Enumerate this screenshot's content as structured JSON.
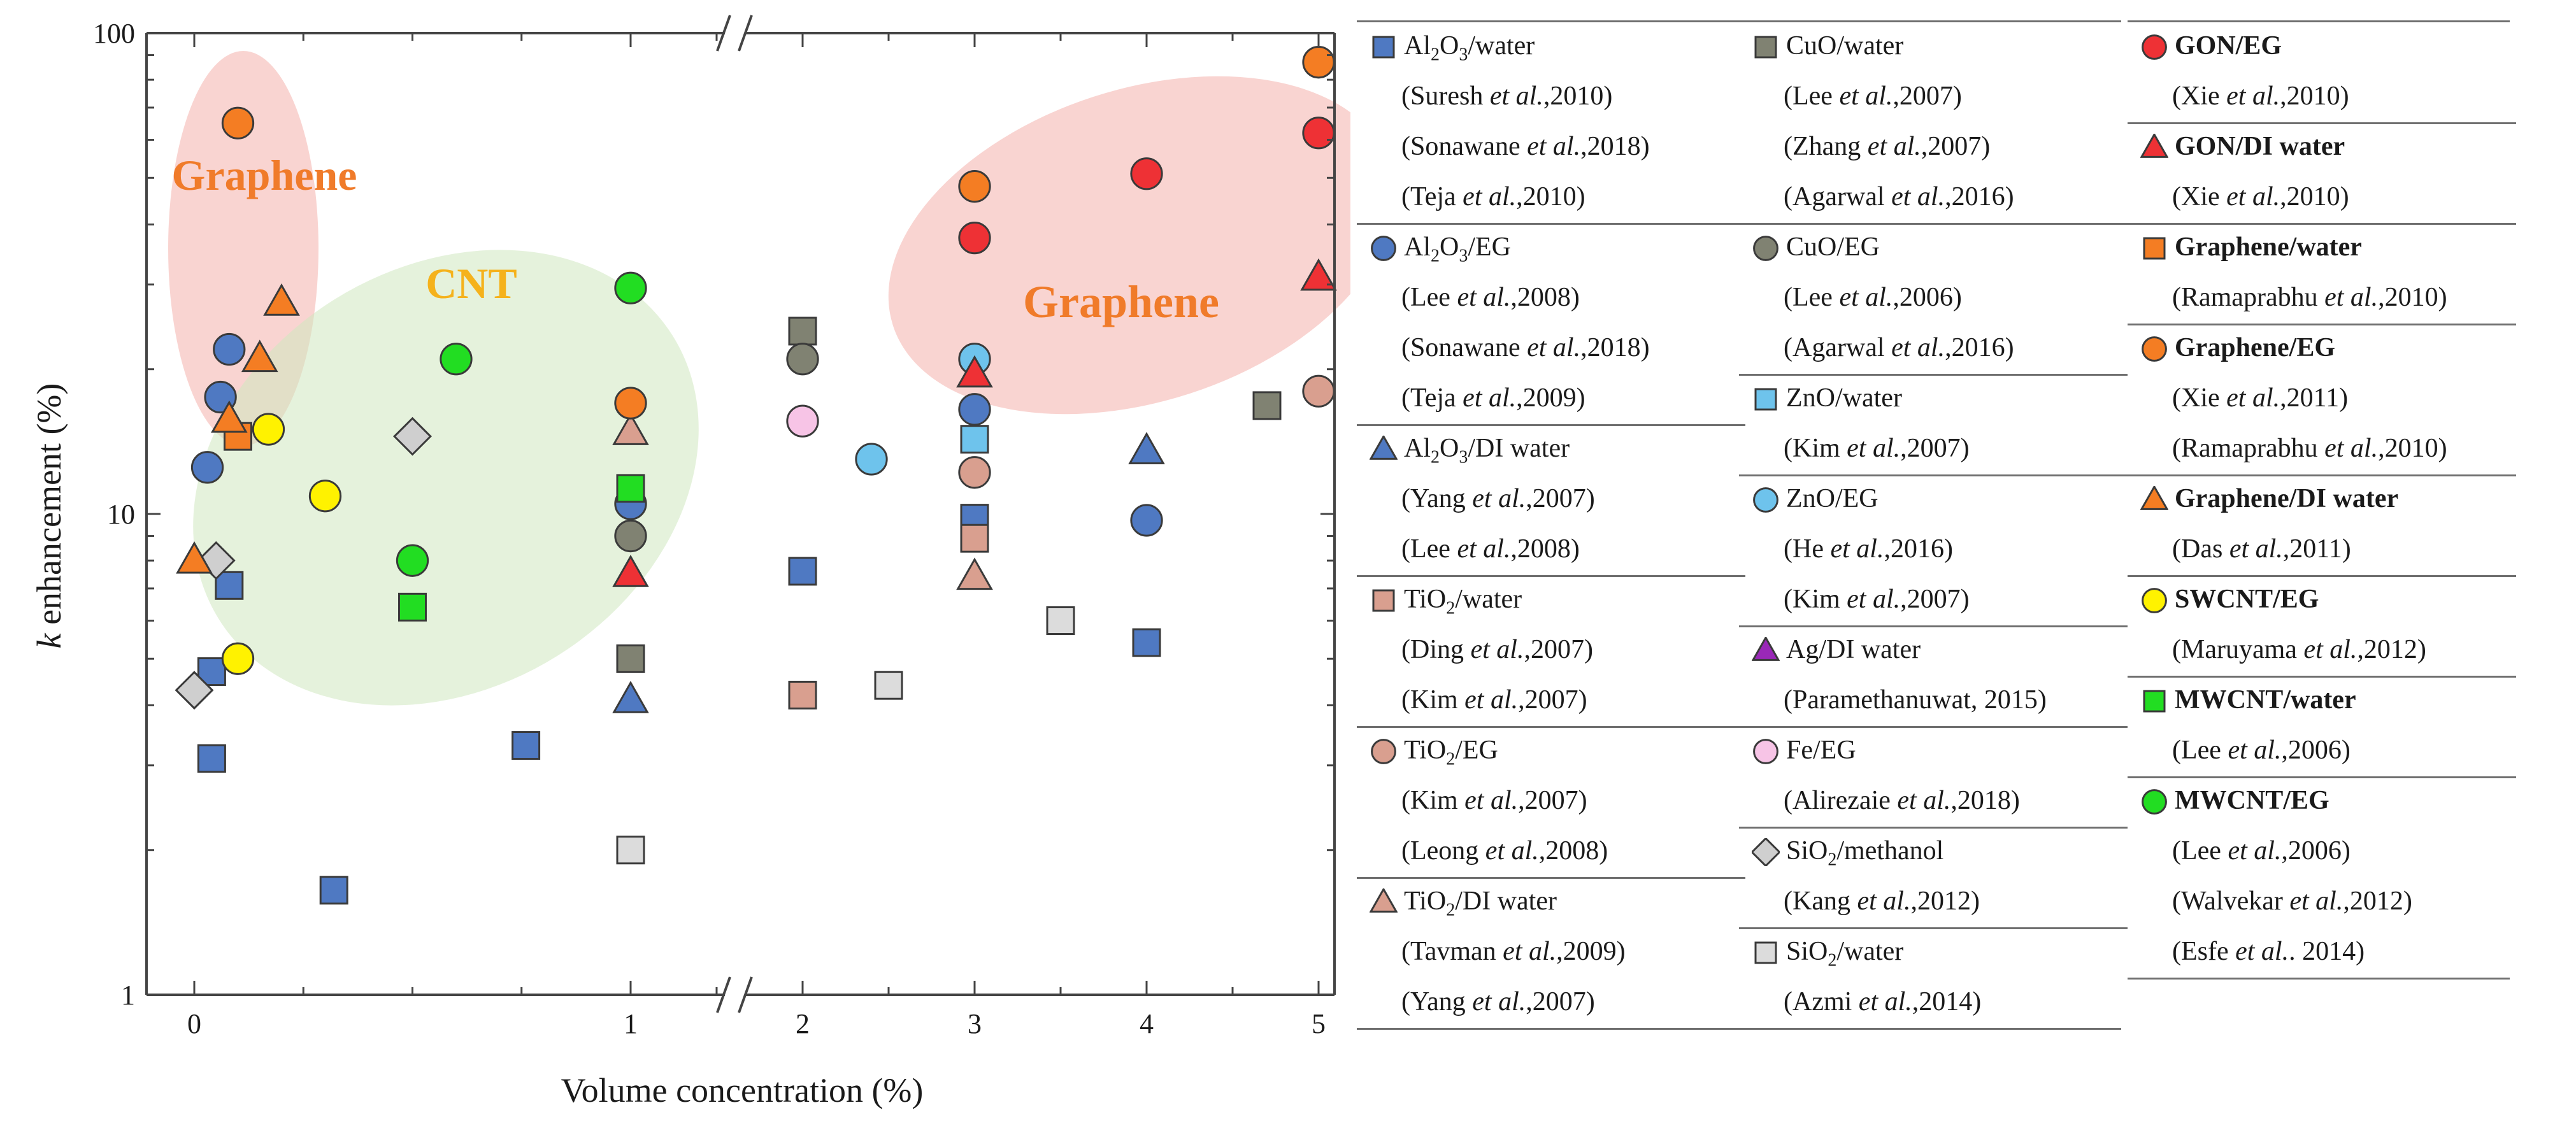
{
  "chart_data": {
    "type": "scatter",
    "y_scale": "log",
    "ylim": [
      1,
      100
    ],
    "xlabel": "Volume concentration (%)",
    "ylabel": "k enhancement (%)",
    "ylabel_parts": {
      "italic": "k",
      "rest": " enhancement (%)"
    },
    "x_axis_break": "//",
    "x_ticks": [
      "0",
      "1",
      "2",
      "3",
      "4",
      "5"
    ],
    "y_ticks": [
      "1",
      "10",
      "100"
    ],
    "regions": [
      {
        "label": "Graphene",
        "color": "#f3a9a4",
        "text_color": "#f07b2a"
      },
      {
        "label": "CNT",
        "color": "#cfe7c0",
        "text_color": "#f5b21c"
      },
      {
        "label": "Graphene",
        "color": "#f3a9a4",
        "text_color": "#f07b2a"
      }
    ],
    "series": [
      {
        "name": "Al2O3/water",
        "marker": "square",
        "color": "#4f79c2",
        "points": [
          [
            0.04,
            4.7
          ],
          [
            0.04,
            3.1
          ],
          [
            0.08,
            7.1
          ],
          [
            0.32,
            1.65
          ],
          [
            0.76,
            3.3
          ],
          [
            2,
            7.6
          ],
          [
            3,
            9.8
          ],
          [
            4,
            5.4
          ]
        ]
      },
      {
        "name": "Al2O3/EG",
        "marker": "circle",
        "color": "#4f79c2",
        "points": [
          [
            0.03,
            12.5
          ],
          [
            0.06,
            17.5
          ],
          [
            0.08,
            22
          ],
          [
            1,
            10.5
          ],
          [
            3,
            16.5
          ],
          [
            4,
            9.7
          ]
        ]
      },
      {
        "name": "Al2O3/DI water",
        "marker": "triangle",
        "color": "#4f79c2",
        "points": [
          [
            1,
            4.1
          ],
          [
            4,
            13.5
          ]
        ]
      },
      {
        "name": "TiO2/water",
        "marker": "square",
        "color": "#d99f8f",
        "points": [
          [
            2,
            4.2
          ],
          [
            3,
            8.9
          ]
        ]
      },
      {
        "name": "TiO2/EG",
        "marker": "circle",
        "color": "#d99f8f",
        "points": [
          [
            3,
            12.2
          ],
          [
            5,
            18
          ]
        ]
      },
      {
        "name": "TiO2/DI water",
        "marker": "triangle",
        "color": "#d99f8f",
        "points": [
          [
            1,
            14.8
          ],
          [
            3,
            7.4
          ]
        ]
      },
      {
        "name": "CuO/water",
        "marker": "square",
        "color": "#808272",
        "points": [
          [
            1,
            5
          ],
          [
            2,
            24
          ],
          [
            4.7,
            16.8
          ]
        ]
      },
      {
        "name": "CuO/EG",
        "marker": "circle",
        "color": "#808272",
        "points": [
          [
            1,
            9
          ],
          [
            2,
            21
          ]
        ]
      },
      {
        "name": "ZnO/water",
        "marker": "square",
        "color": "#6ec3ec",
        "points": [
          [
            3,
            14.3
          ]
        ]
      },
      {
        "name": "ZnO/EG",
        "marker": "circle",
        "color": "#6ec3ec",
        "points": [
          [
            2.4,
            13
          ],
          [
            3,
            21
          ]
        ]
      },
      {
        "name": "Ag/DI water",
        "marker": "triangle",
        "color": "#9a28b8",
        "points": []
      },
      {
        "name": "Fe/EG",
        "marker": "circle",
        "color": "#f7c4e6",
        "points": [
          [
            2,
            15.6
          ]
        ]
      },
      {
        "name": "SiO2/methanol",
        "marker": "diamond",
        "color": "#cfcfcf",
        "points": [
          [
            0,
            4.3
          ],
          [
            0.05,
            8
          ],
          [
            0.5,
            14.5
          ]
        ]
      },
      {
        "name": "SiO2/water",
        "marker": "square",
        "color": "#dcdcdc",
        "points": [
          [
            1,
            2
          ],
          [
            2.5,
            4.4
          ],
          [
            3.5,
            6
          ]
        ]
      },
      {
        "name": "GON/EG",
        "marker": "circle",
        "color": "#ee3135",
        "points": [
          [
            3,
            37.5
          ],
          [
            4,
            51
          ],
          [
            5,
            62
          ]
        ]
      },
      {
        "name": "GON/DI water",
        "marker": "triangle",
        "color": "#ee3135",
        "points": [
          [
            1,
            7.5
          ],
          [
            3,
            19.5
          ],
          [
            5,
            31
          ]
        ]
      },
      {
        "name": "Graphene/water",
        "marker": "square",
        "color": "#f47d23",
        "points": [
          [
            0.1,
            14.5
          ]
        ]
      },
      {
        "name": "Graphene/EG",
        "marker": "circle",
        "color": "#f47d23",
        "points": [
          [
            0.1,
            65
          ],
          [
            1,
            17
          ],
          [
            3,
            48
          ],
          [
            5,
            87
          ]
        ]
      },
      {
        "name": "Graphene/DI water",
        "marker": "triangle",
        "color": "#f47d23",
        "points": [
          [
            0,
            8
          ],
          [
            0.08,
            15.7
          ],
          [
            0.15,
            21
          ],
          [
            0.2,
            27.5
          ]
        ]
      },
      {
        "name": "SWCNT/EG",
        "marker": "circle",
        "color": "#fff200",
        "points": [
          [
            0.1,
            5
          ],
          [
            0.17,
            15
          ],
          [
            0.3,
            10.9
          ]
        ]
      },
      {
        "name": "MWCNT/water",
        "marker": "square",
        "color": "#22dd22",
        "points": [
          [
            0.5,
            6.4
          ],
          [
            1,
            11.3
          ]
        ]
      },
      {
        "name": "MWCNT/EG",
        "marker": "circle",
        "color": "#22dd22",
        "points": [
          [
            0.5,
            8
          ],
          [
            0.6,
            21
          ],
          [
            1,
            29.5
          ]
        ]
      }
    ],
    "legend": [
      [
        {
          "kind": "title",
          "marker": "square",
          "color": "#4f79c2",
          "base": "Al",
          "sub1": "2",
          "mid": "O",
          "sub2": "3",
          "tail": "/water"
        },
        {
          "kind": "ref",
          "pre": "(Suresh ",
          "et": "et al.",
          "post": ",2010)"
        },
        {
          "kind": "ref",
          "pre": "(Sonawane ",
          "et": "et al.",
          "post": ",2018)"
        },
        {
          "kind": "ref",
          "pre": "(Teja ",
          "et": "et al.",
          "post": ",2010)"
        },
        {
          "kind": "title",
          "marker": "circle",
          "color": "#4f79c2",
          "base": "Al",
          "sub1": "2",
          "mid": "O",
          "sub2": "3",
          "tail": "/EG"
        },
        {
          "kind": "ref",
          "pre": "(Lee ",
          "et": "et al.",
          "post": ",2008)"
        },
        {
          "kind": "ref",
          "pre": "(Sonawane ",
          "et": "et al.",
          "post": ",2018)"
        },
        {
          "kind": "ref",
          "pre": "(Teja ",
          "et": "et al.",
          "post": ",2009)"
        },
        {
          "kind": "title",
          "marker": "triangle",
          "color": "#4f79c2",
          "base": "Al",
          "sub1": "2",
          "mid": "O",
          "sub2": "3",
          "tail": "/DI water"
        },
        {
          "kind": "ref",
          "pre": "(Yang ",
          "et": "et al.",
          "post": ",2007)"
        },
        {
          "kind": "ref",
          "pre": "(Lee ",
          "et": "et al.",
          "post": ",2008)"
        },
        {
          "kind": "title",
          "marker": "square",
          "color": "#d99f8f",
          "base": "TiO",
          "sub1": "2",
          "mid": "",
          "sub2": "",
          "tail": "/water"
        },
        {
          "kind": "ref",
          "pre": "(Ding ",
          "et": "et al.",
          "post": ",2007)"
        },
        {
          "kind": "ref",
          "pre": "(Kim ",
          "et": "et al.",
          "post": ",2007)"
        },
        {
          "kind": "title",
          "marker": "circle",
          "color": "#d99f8f",
          "base": "TiO",
          "sub1": "2",
          "mid": "",
          "sub2": "",
          "tail": "/EG"
        },
        {
          "kind": "ref",
          "pre": "(Kim ",
          "et": "et al.",
          "post": ",2007)"
        },
        {
          "kind": "ref",
          "pre": "(Leong ",
          "et": "et al.",
          "post": ",2008)"
        },
        {
          "kind": "title",
          "marker": "triangle",
          "color": "#d99f8f",
          "base": "TiO",
          "sub1": "2",
          "mid": "",
          "sub2": "",
          "tail": "/DI water"
        },
        {
          "kind": "ref",
          "pre": "(Tavman ",
          "et": "et al.",
          "post": ",2009)"
        },
        {
          "kind": "ref",
          "pre": "(Yang ",
          "et": "et al.",
          "post": ",2007)"
        }
      ],
      [
        {
          "kind": "title",
          "marker": "square",
          "color": "#808272",
          "base": "CuO/water"
        },
        {
          "kind": "ref",
          "pre": "(Lee ",
          "et": "et al.",
          "post": ",2007)"
        },
        {
          "kind": "ref",
          "pre": "(Zhang ",
          "et": "et al.",
          "post": ",2007)"
        },
        {
          "kind": "ref",
          "pre": "(Agarwal ",
          "et": "et al.",
          "post": ",2016)"
        },
        {
          "kind": "title",
          "marker": "circle",
          "color": "#808272",
          "base": "CuO/EG"
        },
        {
          "kind": "ref",
          "pre": "(Lee ",
          "et": "et al.",
          "post": ",2006)"
        },
        {
          "kind": "ref",
          "pre": "(Agarwal ",
          "et": "et al.",
          "post": ",2016)"
        },
        {
          "kind": "title",
          "marker": "square",
          "color": "#6ec3ec",
          "base": "ZnO/water"
        },
        {
          "kind": "ref",
          "pre": "(Kim ",
          "et": "et al.",
          "post": ",2007)"
        },
        {
          "kind": "title",
          "marker": "circle",
          "color": "#6ec3ec",
          "base": "ZnO/EG"
        },
        {
          "kind": "ref",
          "pre": "(He ",
          "et": "et al.",
          "post": ",2016)"
        },
        {
          "kind": "ref",
          "pre": "(Kim ",
          "et": "et al.",
          "post": ",2007)"
        },
        {
          "kind": "title",
          "marker": "triangle",
          "color": "#9a28b8",
          "base": "Ag/DI water"
        },
        {
          "kind": "ref",
          "pre": "(Paramethanuwat, 2015)",
          "et": "",
          "post": ""
        },
        {
          "kind": "title",
          "marker": "circle",
          "color": "#f7c4e6",
          "base": "Fe/EG"
        },
        {
          "kind": "ref",
          "pre": "(Alirezaie ",
          "et": "et al.",
          "post": ",2018)"
        },
        {
          "kind": "title",
          "marker": "diamond",
          "color": "#cfcfcf",
          "base": "SiO",
          "sub1": "2",
          "mid": "",
          "sub2": "",
          "tail": "/methanol"
        },
        {
          "kind": "ref",
          "pre": "(Kang ",
          "et": "et al.",
          "post": ",2012)"
        },
        {
          "kind": "title",
          "marker": "square",
          "color": "#dcdcdc",
          "base": "SiO",
          "sub1": "2",
          "mid": "",
          "sub2": "",
          "tail": "/water"
        },
        {
          "kind": "ref",
          "pre": "(Azmi ",
          "et": "et al.",
          "post": ",2014)"
        }
      ],
      [
        {
          "kind": "title",
          "bold": true,
          "marker": "circle",
          "color": "#ee3135",
          "base": "GON/EG"
        },
        {
          "kind": "ref",
          "pre": "(Xie ",
          "et": "et al.",
          "post": ",2010)"
        },
        {
          "kind": "title",
          "bold": true,
          "marker": "triangle",
          "color": "#ee3135",
          "base": "GON/DI water"
        },
        {
          "kind": "ref",
          "pre": "(Xie ",
          "et": "et al.",
          "post": ",2010)"
        },
        {
          "kind": "title",
          "bold": true,
          "marker": "square",
          "color": "#f47d23",
          "base": "Graphene/water"
        },
        {
          "kind": "ref",
          "pre": "(Ramaprabhu ",
          "et": "et al.",
          "post": ",2010)"
        },
        {
          "kind": "title",
          "bold": true,
          "marker": "circle",
          "color": "#f47d23",
          "base": "Graphene/EG"
        },
        {
          "kind": "ref",
          "pre": "(Xie ",
          "et": "et al.",
          "post": ",2011)"
        },
        {
          "kind": "ref",
          "pre": "(Ramaprabhu ",
          "et": "et al.",
          "post": ",2010)"
        },
        {
          "kind": "title",
          "bold": true,
          "marker": "triangle",
          "color": "#f47d23",
          "base": "Graphene/DI water"
        },
        {
          "kind": "ref",
          "pre": "(Das ",
          "et": "et al.",
          "post": ",2011)"
        },
        {
          "kind": "title",
          "bold": true,
          "marker": "circle",
          "color": "#fff200",
          "base": "SWCNT/EG"
        },
        {
          "kind": "ref",
          "pre": "(Maruyama ",
          "et": "et al.",
          "post": ",2012)"
        },
        {
          "kind": "title",
          "bold": true,
          "marker": "square",
          "color": "#22dd22",
          "base": "MWCNT/water"
        },
        {
          "kind": "ref",
          "pre": "(Lee ",
          "et": "et al.",
          "post": ",2006)"
        },
        {
          "kind": "title",
          "bold": true,
          "marker": "circle",
          "color": "#22dd22",
          "base": "MWCNT/EG"
        },
        {
          "kind": "ref",
          "pre": "(Lee ",
          "et": "et al.",
          "post": ",2006)"
        },
        {
          "kind": "ref",
          "pre": "(Walvekar ",
          "et": "et al.",
          "post": ",2012)"
        },
        {
          "kind": "ref",
          "pre": "(Esfe ",
          "et": "et al.",
          "post": ". 2014)"
        }
      ]
    ]
  }
}
